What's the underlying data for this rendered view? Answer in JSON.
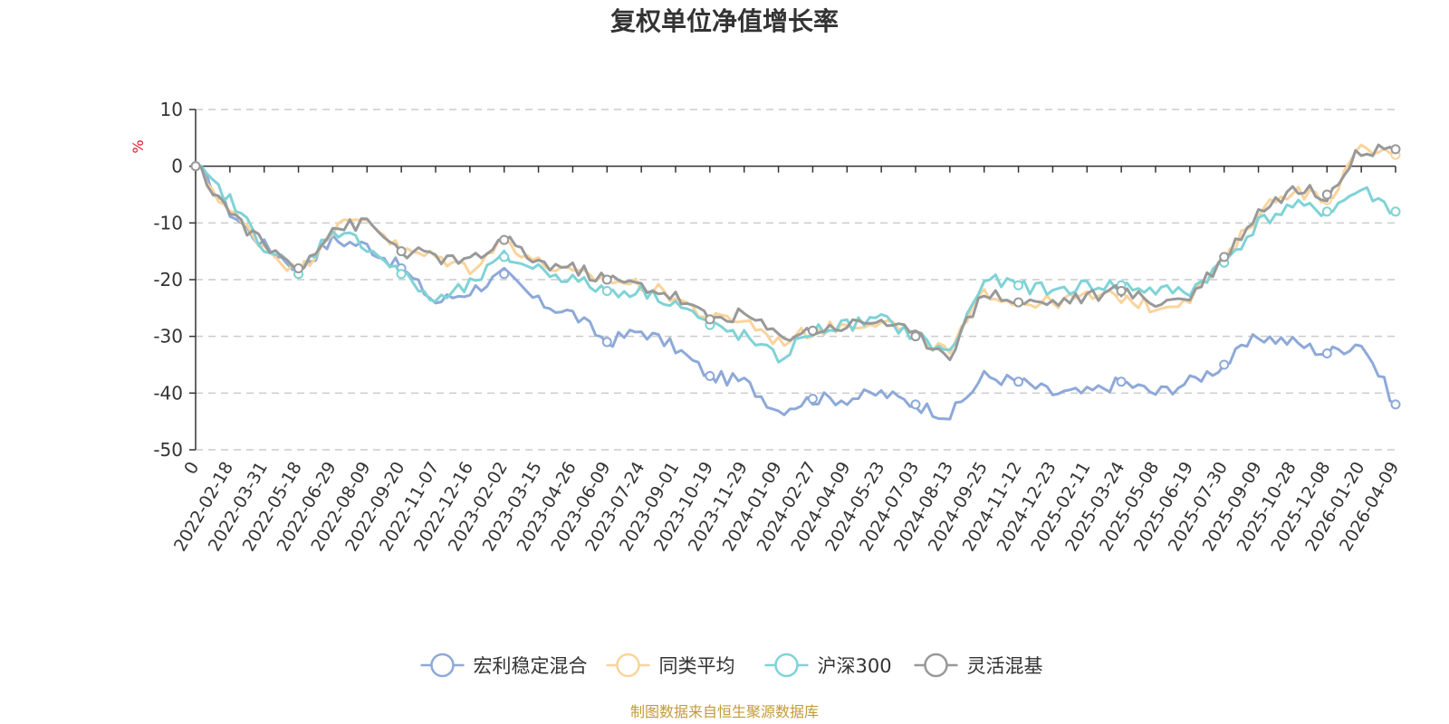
{
  "chart_data": {
    "type": "line",
    "title": "复权单位净值增长率",
    "ylabel": "%",
    "ylim": [
      -50,
      10
    ],
    "yticks": [
      10,
      0,
      -10,
      -20,
      -30,
      -40,
      -50
    ],
    "grid": true,
    "legend_position": "bottom",
    "x_labels": [
      "0",
      "2022-02-18",
      "2022-03-31",
      "2022-05-18",
      "2022-06-29",
      "2022-08-09",
      "2022-09-20",
      "2022-11-07",
      "2022-12-16",
      "2023-02-02",
      "2023-03-15",
      "2023-04-26",
      "2023-06-09",
      "2023-07-24",
      "2023-09-01",
      "2023-10-19",
      "2023-11-29",
      "2024-01-09",
      "2024-02-27",
      "2024-04-09",
      "2024-05-23",
      "2024-07-03",
      "2024-08-13",
      "2024-09-25",
      "2024-11-12",
      "2024-12-23",
      "2025-02-11",
      "2025-03-24",
      "2025-05-08",
      "2025-06-19",
      "2025-07-30",
      "2025-09-09",
      "2025-10-28",
      "2025-12-08",
      "2026-01-20",
      "2026-04-09"
    ],
    "series": [
      {
        "name": "宏利稳定混合",
        "color": "#8ea9d8",
        "values": [
          0,
          -8,
          -14,
          -18,
          -13,
          -14,
          -18,
          -24,
          -22,
          -19,
          -24,
          -26,
          -31,
          -29,
          -32,
          -37,
          -38,
          -43,
          -41,
          -41,
          -40,
          -42,
          -44,
          -37,
          -38,
          -40,
          -40,
          -38,
          -40,
          -38,
          -35,
          -30,
          -31,
          -33,
          -31,
          -42
        ]
      },
      {
        "name": "同类平均",
        "color": "#f9d49c",
        "values": [
          0,
          -8,
          -14,
          -19,
          -11,
          -9,
          -15,
          -16,
          -18,
          -13,
          -17,
          -19,
          -20,
          -21,
          -23,
          -27,
          -27,
          -31,
          -29,
          -28,
          -27,
          -30,
          -33,
          -22,
          -24,
          -24,
          -23,
          -23,
          -25,
          -23,
          -17,
          -8,
          -4,
          -6,
          3,
          2
        ]
      },
      {
        "name": "沪深300",
        "color": "#7fd3d6",
        "values": [
          0,
          -6,
          -14,
          -19,
          -11,
          -14,
          -19,
          -24,
          -21,
          -16,
          -18,
          -20,
          -22,
          -22,
          -24,
          -28,
          -30,
          -34,
          -29,
          -28,
          -27,
          -30,
          -33,
          -20,
          -21,
          -22,
          -21,
          -21,
          -22,
          -22,
          -17,
          -10,
          -7,
          -8,
          -4,
          -8
        ]
      },
      {
        "name": "灵活混基",
        "color": "#999999",
        "values": [
          0,
          -8,
          -14,
          -18,
          -11,
          -10,
          -15,
          -16,
          -17,
          -13,
          -17,
          -18,
          -20,
          -21,
          -23,
          -27,
          -26,
          -30,
          -29,
          -28,
          -27,
          -30,
          -33,
          -22,
          -24,
          -24,
          -23,
          -22,
          -24,
          -23,
          -16,
          -8,
          -4,
          -5,
          3,
          3
        ]
      }
    ]
  },
  "source_note": "制图数据来自恒生聚源数据库"
}
